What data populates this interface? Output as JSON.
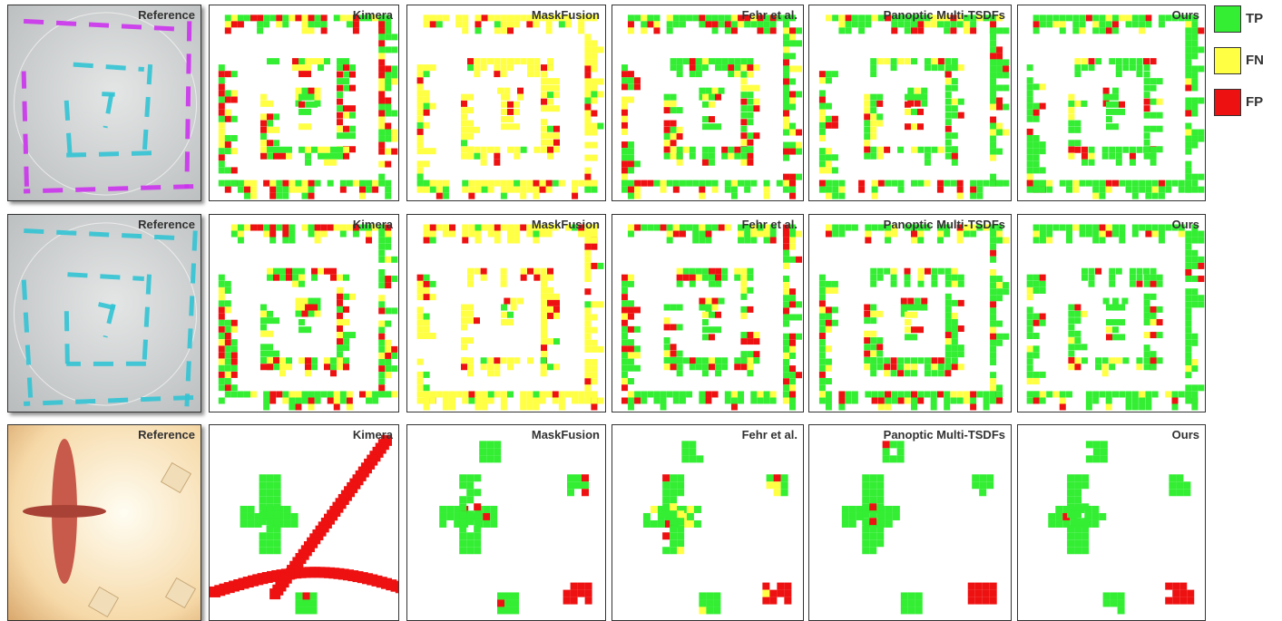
{
  "rows": [
    {
      "panels": [
        "Reference",
        "Kimera",
        "MaskFusion",
        "Fehr et al.",
        "Panoptic Multi-TSDFs",
        "Ours"
      ]
    },
    {
      "panels": [
        "Reference",
        "Kimera",
        "MaskFusion",
        "Fehr et al.",
        "Panoptic Multi-TSDFs",
        "Ours"
      ]
    },
    {
      "panels": [
        "Reference",
        "Kimera",
        "MaskFusion",
        "Fehr et al.",
        "Panoptic Multi-TSDFs",
        "Ours"
      ]
    }
  ],
  "legend": [
    {
      "label": "TP",
      "color": "#33ee33"
    },
    {
      "label": "FN",
      "color": "#ffff44"
    },
    {
      "label": "FP",
      "color": "#ee1111"
    }
  ]
}
